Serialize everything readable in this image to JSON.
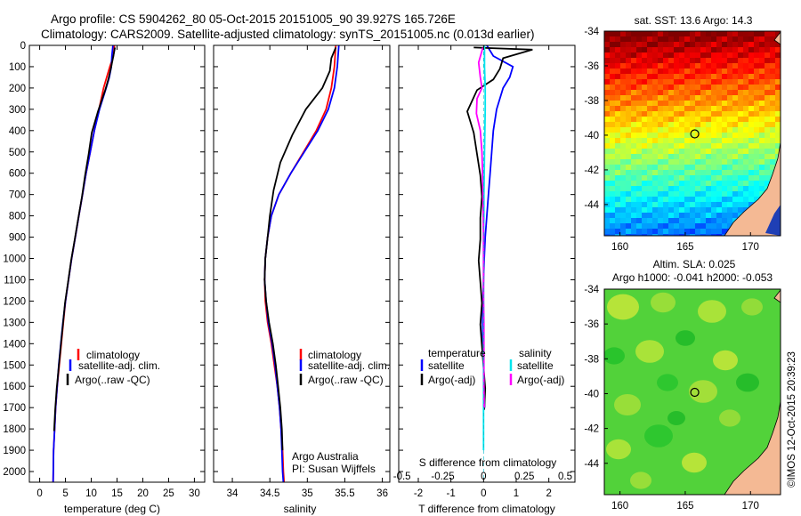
{
  "header": {
    "line1": "Argo profile: CS 5904262_80 05-Oct-2015 20151005_90 39.927S 165.726E",
    "line2": "Climatology: CARS2009. Satellite-adjusted climatology: synTS_20151005.nc (0.013d earlier)"
  },
  "credit": {
    "institution": "Argo Australia",
    "pi": "PI: Susan Wijffels",
    "imos_stamp": "©IMOS 12-Oct-2015 20:39:23"
  },
  "colors": {
    "climatology": "#ff0000",
    "satellite_adj": "#0000ff",
    "argo": "#000000",
    "satellite_salinity": "#00e5ee",
    "argo_adj_salinity": "#ff00ff",
    "land": "#f4b994"
  },
  "chart_data": [
    {
      "type": "line",
      "id": "temperature",
      "xlabel": "temperature (deg C)",
      "xlim": [
        -2,
        32
      ],
      "ylim": [
        2050,
        0
      ],
      "xticks": [
        0,
        5,
        10,
        15,
        20,
        25,
        30
      ],
      "yticks": [
        0,
        100,
        200,
        300,
        400,
        500,
        600,
        700,
        800,
        900,
        1000,
        1100,
        1200,
        1300,
        1400,
        1500,
        1600,
        1700,
        1800,
        1900,
        2000
      ],
      "legend": [
        "climatology",
        "satellite-adj. clim.",
        "Argo(..raw -QC)"
      ],
      "series": [
        {
          "name": "climatology",
          "color": "#ff0000",
          "x": [
            14.5,
            14.3,
            13.6,
            13.0,
            12.4,
            11.5,
            10.6,
            9.8,
            9.0,
            8.3,
            7.6,
            6.9,
            6.2,
            5.6,
            5.0,
            4.6,
            4.2,
            3.8,
            3.4,
            3.1,
            2.9,
            2.7,
            2.6
          ],
          "y": [
            0,
            50,
            100,
            150,
            200,
            300,
            400,
            500,
            600,
            700,
            800,
            900,
            1000,
            1100,
            1200,
            1300,
            1400,
            1500,
            1600,
            1700,
            1800,
            1900,
            2050
          ]
        },
        {
          "name": "satellite-adj. clim.",
          "color": "#0000ff",
          "x": [
            14.2,
            14.0,
            13.9,
            13.5,
            12.9,
            11.6,
            10.6,
            9.8,
            9.0,
            8.3,
            7.6,
            6.9,
            6.2,
            5.6,
            5.0,
            4.5,
            4.1,
            3.7,
            3.4,
            3.1,
            2.9,
            2.7,
            2.6
          ],
          "y": [
            0,
            50,
            100,
            150,
            200,
            300,
            400,
            500,
            600,
            700,
            800,
            900,
            1000,
            1100,
            1200,
            1300,
            1400,
            1500,
            1600,
            1700,
            1800,
            1900,
            2050
          ]
        },
        {
          "name": "Argo(..raw -QC)",
          "color": "#000000",
          "x": [
            14.6,
            14.2,
            13.8,
            13.3,
            12.7,
            11.3,
            10.1,
            9.5,
            8.8,
            8.2,
            7.5,
            6.8,
            6.1,
            5.5,
            4.9,
            4.5,
            4.1,
            3.7,
            3.3,
            3.0,
            2.8
          ],
          "y": [
            10,
            60,
            110,
            160,
            210,
            310,
            410,
            510,
            610,
            710,
            810,
            910,
            1010,
            1110,
            1210,
            1310,
            1410,
            1510,
            1610,
            1710,
            1810
          ]
        }
      ]
    },
    {
      "type": "line",
      "id": "salinity",
      "xlabel": "salinity",
      "xlim": [
        33.75,
        36.1
      ],
      "ylim": [
        2050,
        0
      ],
      "xticks": [
        34,
        34.5,
        35,
        35.5,
        36
      ],
      "legend": [
        "climatology",
        "satellite-adj. clim.",
        "Argo(..raw -QC)"
      ],
      "series": [
        {
          "name": "climatology",
          "color": "#ff0000",
          "x": [
            35.38,
            35.36,
            35.32,
            35.25,
            35.12,
            34.95,
            34.78,
            34.62,
            34.52,
            34.47,
            34.44,
            34.43,
            34.44,
            34.47,
            34.52,
            34.56,
            34.6,
            34.63,
            34.65,
            34.67,
            34.68,
            34.69
          ],
          "y": [
            0,
            100,
            200,
            300,
            400,
            500,
            600,
            700,
            800,
            900,
            1000,
            1100,
            1200,
            1300,
            1400,
            1500,
            1600,
            1700,
            1800,
            1900,
            2000,
            2050
          ]
        },
        {
          "name": "satellite-adj. clim.",
          "color": "#0000ff",
          "x": [
            35.42,
            35.4,
            35.36,
            35.28,
            35.14,
            34.96,
            34.78,
            34.62,
            34.52,
            34.47,
            34.44,
            34.43,
            34.45,
            34.48,
            34.53,
            34.57,
            34.6,
            34.63,
            34.65,
            34.66,
            34.67,
            34.68
          ],
          "y": [
            0,
            100,
            200,
            300,
            400,
            500,
            600,
            700,
            800,
            900,
            1000,
            1100,
            1200,
            1300,
            1400,
            1500,
            1600,
            1700,
            1800,
            1900,
            2000,
            2050
          ]
        },
        {
          "name": "Argo(..raw -QC)",
          "color": "#000000",
          "x": [
            35.38,
            35.32,
            35.3,
            35.2,
            34.98,
            34.8,
            34.64,
            34.55,
            34.5,
            34.47,
            34.44,
            34.43,
            34.45,
            34.49,
            34.54,
            34.58,
            34.61,
            34.64,
            34.66,
            34.67
          ],
          "y": [
            10,
            60,
            120,
            200,
            300,
            420,
            550,
            680,
            800,
            900,
            1000,
            1100,
            1200,
            1300,
            1400,
            1500,
            1600,
            1700,
            1800,
            1900
          ]
        }
      ]
    },
    {
      "type": "line",
      "id": "difference",
      "xlabel": "T difference from climatology",
      "x2label": "S difference from climatology",
      "xlim": [
        -2.6,
        2.8
      ],
      "ylim": [
        2050,
        0
      ],
      "xticks": [
        -2,
        -1,
        0,
        1,
        2
      ],
      "s_xticks": [
        -0.5,
        -0.25,
        0,
        0.25,
        0.5
      ],
      "s_scale": 0.2,
      "legend_temperature": {
        "heading": "temperature",
        "items": [
          "satellite",
          "Argo(-adj)"
        ]
      },
      "legend_salinity": {
        "heading": "salinity",
        "items": [
          "satellite",
          "Argo(-adj)"
        ]
      },
      "series": [
        {
          "name": "temperature satellite",
          "color": "#0000ff",
          "x": [
            0.1,
            0.3,
            0.9,
            0.8,
            0.6,
            0.4,
            0.3,
            0.25,
            0.2,
            0.15,
            0.1,
            0.05,
            0.02,
            0,
            -0.02,
            -0.03,
            -0.02,
            0,
            0.02,
            0.03
          ],
          "y": [
            0,
            50,
            100,
            150,
            200,
            300,
            400,
            500,
            600,
            700,
            800,
            900,
            1000,
            1100,
            1200,
            1300,
            1400,
            1500,
            1600,
            1700
          ]
        },
        {
          "name": "temperature Argo(-adj)",
          "color": "#000000",
          "x": [
            -0.3,
            1.5,
            0.6,
            0.5,
            0.3,
            -0.2,
            -0.5,
            -0.3,
            -0.2,
            -0.1,
            -0.05,
            -0.1,
            -0.1,
            -0.15,
            -0.1,
            -0.05,
            -0.1,
            -0.05,
            0,
            0.05,
            0.02
          ],
          "y": [
            10,
            20,
            60,
            110,
            160,
            210,
            310,
            410,
            510,
            610,
            710,
            810,
            910,
            1010,
            1110,
            1210,
            1310,
            1410,
            1510,
            1610,
            1710
          ]
        },
        {
          "name": "salinity satellite",
          "color": "#00e5ee",
          "x": [
            0.03,
            0.03,
            0.05,
            0.05,
            0.04,
            0.03,
            0.02,
            0.01,
            0.01,
            0,
            0,
            0,
            0,
            0,
            0,
            0,
            0,
            0,
            0,
            0
          ],
          "y": [
            0,
            100,
            200,
            300,
            400,
            500,
            600,
            700,
            800,
            900,
            1000,
            1100,
            1200,
            1300,
            1400,
            1500,
            1600,
            1700,
            1800,
            1900
          ]
        },
        {
          "name": "salinity Argo(-adj)",
          "color": "#ff00ff",
          "x": [
            -0.02,
            -0.15,
            -0.1,
            -0.05,
            -0.2,
            -0.22,
            -0.1,
            -0.05,
            -0.03,
            -0.02,
            -0.01,
            0,
            0,
            0,
            0,
            0.01,
            0.01,
            0.01,
            0.01,
            0.02
          ],
          "y": [
            10,
            80,
            150,
            200,
            250,
            320,
            400,
            500,
            600,
            700,
            800,
            900,
            1000,
            1100,
            1200,
            1300,
            1400,
            1500,
            1600,
            1700
          ]
        }
      ]
    },
    {
      "type": "heatmap",
      "id": "sst_map",
      "title": "sat. SST: 13.6 Argo: 14.3",
      "xlim": [
        158.8,
        172.3
      ],
      "ylim": [
        -45.8,
        -34
      ],
      "xticks": [
        160,
        165,
        170
      ],
      "yticks": [
        -34,
        -36,
        -38,
        -40,
        -42,
        -44
      ],
      "marker": {
        "lon": 165.726,
        "lat": -39.927
      }
    },
    {
      "type": "heatmap",
      "id": "sla_map",
      "title": "Altim. SLA: 0.025",
      "subtitle": "Argo h1000: -0.041 h2000: -0.053",
      "xlim": [
        158.8,
        172.3
      ],
      "ylim": [
        -45.8,
        -34
      ],
      "xticks": [
        160,
        165,
        170
      ],
      "yticks": [
        -34,
        -36,
        -38,
        -40,
        -42,
        -44
      ],
      "marker": {
        "lon": 165.726,
        "lat": -39.927
      }
    }
  ]
}
